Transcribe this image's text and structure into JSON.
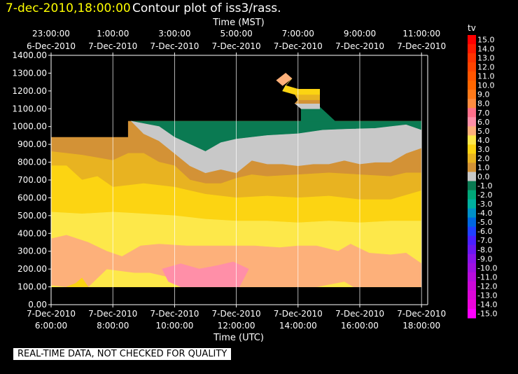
{
  "header": {
    "date_time": "7-dec-2010,18:00:00",
    "title": "Contour plot of iss3/rass."
  },
  "footer_note": "REAL-TIME DATA, NOT CHECKED FOR QUALITY",
  "colors": {
    "background": "#000000",
    "no_data": "#000000",
    "grid": "#ffffff"
  },
  "chart_data": {
    "type": "heatmap",
    "title": "Contour plot of iss3/rass.",
    "x_top_label": "Time (MST)",
    "x_bottom_label": "Time (UTC)",
    "y_ticks": [
      "0.00",
      "100.00",
      "200.00",
      "300.00",
      "400.00",
      "500.00",
      "600.00",
      "700.00",
      "800.00",
      "900.00",
      "1000.00",
      "1100.00",
      "1200.00",
      "1300.00",
      "1400.00"
    ],
    "ylim": [
      0,
      1400
    ],
    "xlim_utc_hours": [
      6,
      18.2
    ],
    "x_bottom_ticks": [
      {
        "hour": 6,
        "date": "7-Dec-2010",
        "time": "6:00:00"
      },
      {
        "hour": 8,
        "date": "7-Dec-2010",
        "time": "8:00:00"
      },
      {
        "hour": 10,
        "date": "7-Dec-2010",
        "time": "10:00:00"
      },
      {
        "hour": 12,
        "date": "7-Dec-2010",
        "time": "12:00:00"
      },
      {
        "hour": 14,
        "date": "7-Dec-2010",
        "time": "14:00:00"
      },
      {
        "hour": 16,
        "date": "7-Dec-2010",
        "time": "16:00:00"
      },
      {
        "hour": 18,
        "date": "7-Dec-2010",
        "time": "18:00:00"
      }
    ],
    "x_top_ticks": [
      {
        "hour": 6,
        "time": "23:00:00",
        "date": "6-Dec-2010"
      },
      {
        "hour": 8,
        "time": "1:00:00",
        "date": "7-Dec-2010"
      },
      {
        "hour": 10,
        "time": "3:00:00",
        "date": "7-Dec-2010"
      },
      {
        "hour": 12,
        "time": "5:00:00",
        "date": "7-Dec-2010"
      },
      {
        "hour": 14,
        "time": "7:00:00",
        "date": "7-Dec-2010"
      },
      {
        "hour": 16,
        "time": "9:00:00",
        "date": "7-Dec-2010"
      },
      {
        "hour": 18,
        "time": "11:00:00",
        "date": "7-Dec-2010"
      }
    ],
    "colorbar": {
      "label": "tv",
      "levels": [
        {
          "value": "15.0",
          "color": "#ff0000"
        },
        {
          "value": "14.0",
          "color": "#ff1a00"
        },
        {
          "value": "13.0",
          "color": "#ff3300"
        },
        {
          "value": "12.0",
          "color": "#ff4400"
        },
        {
          "value": "11.0",
          "color": "#ff5500"
        },
        {
          "value": "10.0",
          "color": "#ff6600"
        },
        {
          "value": "9.0",
          "color": "#ff7a1a"
        },
        {
          "value": "8.0",
          "color": "#ff8c40"
        },
        {
          "value": "7.0",
          "color": "#ff6f8a"
        },
        {
          "value": "6.0",
          "color": "#ff8fa8"
        },
        {
          "value": "5.0",
          "color": "#fdb07a"
        },
        {
          "value": "4.0",
          "color": "#fde84a"
        },
        {
          "value": "3.0",
          "color": "#fcd412"
        },
        {
          "value": "2.0",
          "color": "#e8b321"
        },
        {
          "value": "1.0",
          "color": "#d39236"
        },
        {
          "value": "0.0",
          "color": "#c8c8c8"
        },
        {
          "value": "-1.0",
          "color": "#0a7a52"
        },
        {
          "value": "-2.0",
          "color": "#00a878"
        },
        {
          "value": "-3.0",
          "color": "#00b0a0"
        },
        {
          "value": "-4.0",
          "color": "#0090c8"
        },
        {
          "value": "-5.0",
          "color": "#0066e0"
        },
        {
          "value": "-6.0",
          "color": "#2040ff"
        },
        {
          "value": "-7.0",
          "color": "#4a20ff"
        },
        {
          "value": "-8.0",
          "color": "#6a18f0"
        },
        {
          "value": "-9.0",
          "color": "#8a14e8"
        },
        {
          "value": "-10.0",
          "color": "#a010e0"
        },
        {
          "value": "-11.0",
          "color": "#b80cdc"
        },
        {
          "value": "-12.0",
          "color": "#cc08d8"
        },
        {
          "value": "-13.0",
          "color": "#dd06d8"
        },
        {
          "value": "-14.0",
          "color": "#ee04dc"
        },
        {
          "value": "-15.0",
          "color": "#ff00ff"
        }
      ]
    },
    "contour_regions": [
      {
        "level": "1.0",
        "polygon": [
          [
            6,
            940
          ],
          [
            8.5,
            940
          ],
          [
            8.5,
            1030
          ],
          [
            10,
            1030
          ],
          [
            18.0,
            1030
          ],
          [
            18.0,
            100
          ],
          [
            6,
            100
          ]
        ]
      },
      {
        "level": "-1.0",
        "polygon": [
          [
            8.6,
            1030
          ],
          [
            18.0,
            1030
          ],
          [
            18.0,
            980
          ],
          [
            17.5,
            1010
          ],
          [
            17.0,
            1000
          ],
          [
            16.5,
            990
          ],
          [
            15.5,
            985
          ],
          [
            14.8,
            980
          ],
          [
            14.0,
            960
          ],
          [
            13.0,
            950
          ],
          [
            12.0,
            930
          ],
          [
            11.5,
            910
          ],
          [
            11.0,
            860
          ],
          [
            10.0,
            940
          ],
          [
            9.5,
            1000
          ],
          [
            8.6,
            1030
          ]
        ]
      },
      {
        "level": "-1.0",
        "polygon": [
          [
            14.1,
            1110
          ],
          [
            14.7,
            1110
          ],
          [
            15.2,
            1030
          ],
          [
            14.1,
            1030
          ]
        ]
      },
      {
        "level": "0.0",
        "polygon": [
          [
            8.6,
            1030
          ],
          [
            9.5,
            1000
          ],
          [
            10,
            940
          ],
          [
            11.0,
            860
          ],
          [
            11.5,
            910
          ],
          [
            12.0,
            930
          ],
          [
            13.0,
            950
          ],
          [
            14.0,
            960
          ],
          [
            14.8,
            980
          ],
          [
            15.5,
            985
          ],
          [
            16.5,
            990
          ],
          [
            17.0,
            1000
          ],
          [
            17.5,
            1010
          ],
          [
            18.0,
            980
          ],
          [
            18.0,
            880
          ],
          [
            17.5,
            850
          ],
          [
            17.0,
            800
          ],
          [
            16.5,
            800
          ],
          [
            16.0,
            790
          ],
          [
            15.5,
            810
          ],
          [
            15.0,
            790
          ],
          [
            14.5,
            790
          ],
          [
            14.0,
            780
          ],
          [
            13.5,
            790
          ],
          [
            13.0,
            790
          ],
          [
            12.5,
            810
          ],
          [
            12.0,
            740
          ],
          [
            11.5,
            760
          ],
          [
            11.0,
            740
          ],
          [
            10.5,
            780
          ],
          [
            10.0,
            850
          ],
          [
            9.5,
            920
          ],
          [
            9.0,
            960
          ],
          [
            8.6,
            1030
          ]
        ]
      },
      {
        "level": "2.0",
        "polygon": [
          [
            6,
            860
          ],
          [
            7.0,
            840
          ],
          [
            8.0,
            810
          ],
          [
            8.5,
            850
          ],
          [
            9.0,
            850
          ],
          [
            9.5,
            800
          ],
          [
            10.0,
            780
          ],
          [
            10.5,
            700
          ],
          [
            11.0,
            680
          ],
          [
            11.5,
            680
          ],
          [
            12.0,
            710
          ],
          [
            12.5,
            730
          ],
          [
            13.0,
            720
          ],
          [
            14.0,
            730
          ],
          [
            15.0,
            740
          ],
          [
            16.0,
            730
          ],
          [
            17.0,
            720
          ],
          [
            17.5,
            740
          ],
          [
            18.0,
            740
          ],
          [
            18.0,
            600
          ],
          [
            17.5,
            580
          ],
          [
            17.0,
            570
          ],
          [
            16.0,
            580
          ],
          [
            15.0,
            590
          ],
          [
            14.0,
            570
          ],
          [
            13.0,
            570
          ],
          [
            12.0,
            590
          ],
          [
            11.0,
            580
          ],
          [
            10.0,
            600
          ],
          [
            9.0,
            620
          ],
          [
            8.0,
            640
          ],
          [
            7.0,
            690
          ],
          [
            6,
            700
          ]
        ]
      },
      {
        "level": "3.0",
        "polygon": [
          [
            6,
            780
          ],
          [
            6.5,
            780
          ],
          [
            7.0,
            700
          ],
          [
            7.5,
            720
          ],
          [
            8.0,
            660
          ],
          [
            9.0,
            680
          ],
          [
            10.0,
            660
          ],
          [
            11.0,
            620
          ],
          [
            12.0,
            600
          ],
          [
            13.0,
            610
          ],
          [
            14.0,
            600
          ],
          [
            15.0,
            610
          ],
          [
            16.0,
            590
          ],
          [
            17.0,
            590
          ],
          [
            18.0,
            640
          ],
          [
            18.0,
            100
          ],
          [
            6,
            100
          ]
        ]
      },
      {
        "level": "4.0",
        "polygon": [
          [
            6,
            520
          ],
          [
            7.0,
            510
          ],
          [
            8.0,
            520
          ],
          [
            9.0,
            510
          ],
          [
            10.0,
            500
          ],
          [
            11.0,
            480
          ],
          [
            12.0,
            470
          ],
          [
            13.0,
            470
          ],
          [
            14.0,
            460
          ],
          [
            15.0,
            470
          ],
          [
            16.0,
            460
          ],
          [
            17.0,
            470
          ],
          [
            18.0,
            470
          ],
          [
            18.0,
            100
          ],
          [
            6,
            100
          ]
        ]
      },
      {
        "level": "5.0",
        "polygon": [
          [
            6,
            370
          ],
          [
            6.5,
            390
          ],
          [
            7.2,
            350
          ],
          [
            7.8,
            300
          ],
          [
            8.3,
            270
          ],
          [
            8.9,
            330
          ],
          [
            9.5,
            340
          ],
          [
            10.4,
            330
          ],
          [
            11.3,
            330
          ],
          [
            12.0,
            330
          ],
          [
            12.6,
            330
          ],
          [
            13.4,
            320
          ],
          [
            14.0,
            330
          ],
          [
            14.6,
            330
          ],
          [
            15.3,
            300
          ],
          [
            15.7,
            340
          ],
          [
            16.3,
            290
          ],
          [
            17.0,
            280
          ],
          [
            17.5,
            290
          ],
          [
            18.0,
            230
          ],
          [
            18.0,
            100
          ],
          [
            15.8,
            100
          ],
          [
            15.5,
            130
          ],
          [
            14.9,
            110
          ],
          [
            14.6,
            100
          ],
          [
            12.2,
            100
          ],
          [
            11.0,
            110
          ],
          [
            10.2,
            140
          ],
          [
            9.2,
            180
          ],
          [
            8.7,
            180
          ],
          [
            7.8,
            200
          ],
          [
            7.2,
            100
          ],
          [
            6.5,
            100
          ],
          [
            6,
            110
          ]
        ]
      },
      {
        "level": "3.0",
        "polygon": [
          [
            6.5,
            100
          ],
          [
            7.2,
            100
          ],
          [
            7.0,
            150
          ],
          [
            6.8,
            120
          ]
        ]
      },
      {
        "level": "6.0",
        "polygon": [
          [
            9.6,
            200
          ],
          [
            10.2,
            230
          ],
          [
            10.8,
            200
          ],
          [
            11.4,
            220
          ],
          [
            11.9,
            240
          ],
          [
            12.4,
            200
          ],
          [
            12.1,
            100
          ],
          [
            10.2,
            100
          ],
          [
            9.8,
            130
          ]
        ]
      },
      {
        "level": "0.0",
        "polygon": [
          [
            13.9,
            1130
          ],
          [
            14.7,
            1130
          ],
          [
            14.7,
            1100
          ],
          [
            14.1,
            1100
          ]
        ]
      },
      {
        "level": "1.0",
        "polygon": [
          [
            14.0,
            1150
          ],
          [
            14.7,
            1150
          ],
          [
            14.7,
            1130
          ],
          [
            13.9,
            1130
          ]
        ]
      },
      {
        "level": "2.0",
        "polygon": [
          [
            13.9,
            1180
          ],
          [
            14.7,
            1180
          ],
          [
            14.7,
            1150
          ],
          [
            14.0,
            1150
          ]
        ]
      },
      {
        "level": "3.0",
        "polygon": [
          [
            13.6,
            1230
          ],
          [
            14.0,
            1210
          ],
          [
            14.7,
            1210
          ],
          [
            14.7,
            1180
          ],
          [
            13.9,
            1180
          ],
          [
            13.5,
            1200
          ]
        ]
      },
      {
        "level": "5.0",
        "polygon": [
          [
            13.6,
            1300
          ],
          [
            13.8,
            1270
          ],
          [
            13.5,
            1230
          ],
          [
            13.3,
            1260
          ]
        ]
      },
      {
        "level": "4.0",
        "polygon": [
          [
            13.8,
            1270
          ],
          [
            13.6,
            1230
          ],
          [
            13.5,
            1200
          ],
          [
            13.6,
            1230
          ]
        ]
      }
    ]
  }
}
